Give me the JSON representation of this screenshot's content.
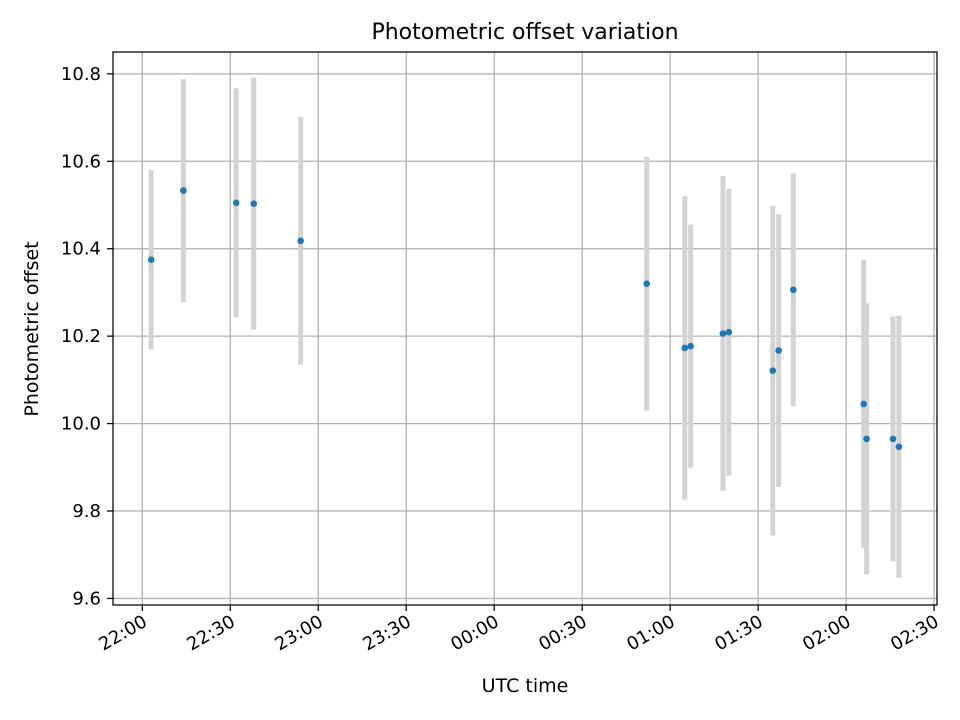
{
  "chart_data": {
    "type": "scatter",
    "title": "Photometric offset variation",
    "xlabel": "UTC time",
    "ylabel": "Photometric offset",
    "x_is_time": true,
    "xlim": [
      "21:50",
      "02:31"
    ],
    "ylim": [
      9.585,
      10.85
    ],
    "x_ticks": [
      "22:00",
      "22:30",
      "23:00",
      "23:30",
      "00:00",
      "00:30",
      "01:00",
      "01:30",
      "02:00",
      "02:30"
    ],
    "y_ticks": [
      9.6,
      9.8,
      10.0,
      10.2,
      10.4,
      10.6,
      10.8
    ],
    "y_tick_labels": [
      "9.6",
      "9.8",
      "10.0",
      "10.2",
      "10.4",
      "10.6",
      "10.8"
    ],
    "grid": true,
    "marker_color": "#1f77b4",
    "errorbar_color": "#d3d3d3",
    "points": [
      {
        "x": "22:03",
        "y": 10.375,
        "err": 0.205
      },
      {
        "x": "22:14",
        "y": 10.533,
        "err": 0.255
      },
      {
        "x": "22:32",
        "y": 10.505,
        "err": 0.262
      },
      {
        "x": "22:38",
        "y": 10.503,
        "err": 0.288
      },
      {
        "x": "22:54",
        "y": 10.418,
        "err": 0.283
      },
      {
        "x": "00:52",
        "y": 10.32,
        "err": 0.29
      },
      {
        "x": "01:05",
        "y": 10.173,
        "err": 0.347
      },
      {
        "x": "01:07",
        "y": 10.177,
        "err": 0.278
      },
      {
        "x": "01:18",
        "y": 10.206,
        "err": 0.36
      },
      {
        "x": "01:20",
        "y": 10.209,
        "err": 0.328
      },
      {
        "x": "01:35",
        "y": 10.121,
        "err": 0.377
      },
      {
        "x": "01:37",
        "y": 10.167,
        "err": 0.312
      },
      {
        "x": "01:42",
        "y": 10.306,
        "err": 0.266
      },
      {
        "x": "02:06",
        "y": 10.045,
        "err": 0.33
      },
      {
        "x": "02:07",
        "y": 9.965,
        "err": 0.31
      },
      {
        "x": "02:16",
        "y": 9.965,
        "err": 0.28
      },
      {
        "x": "02:18",
        "y": 9.947,
        "err": 0.3
      }
    ]
  }
}
